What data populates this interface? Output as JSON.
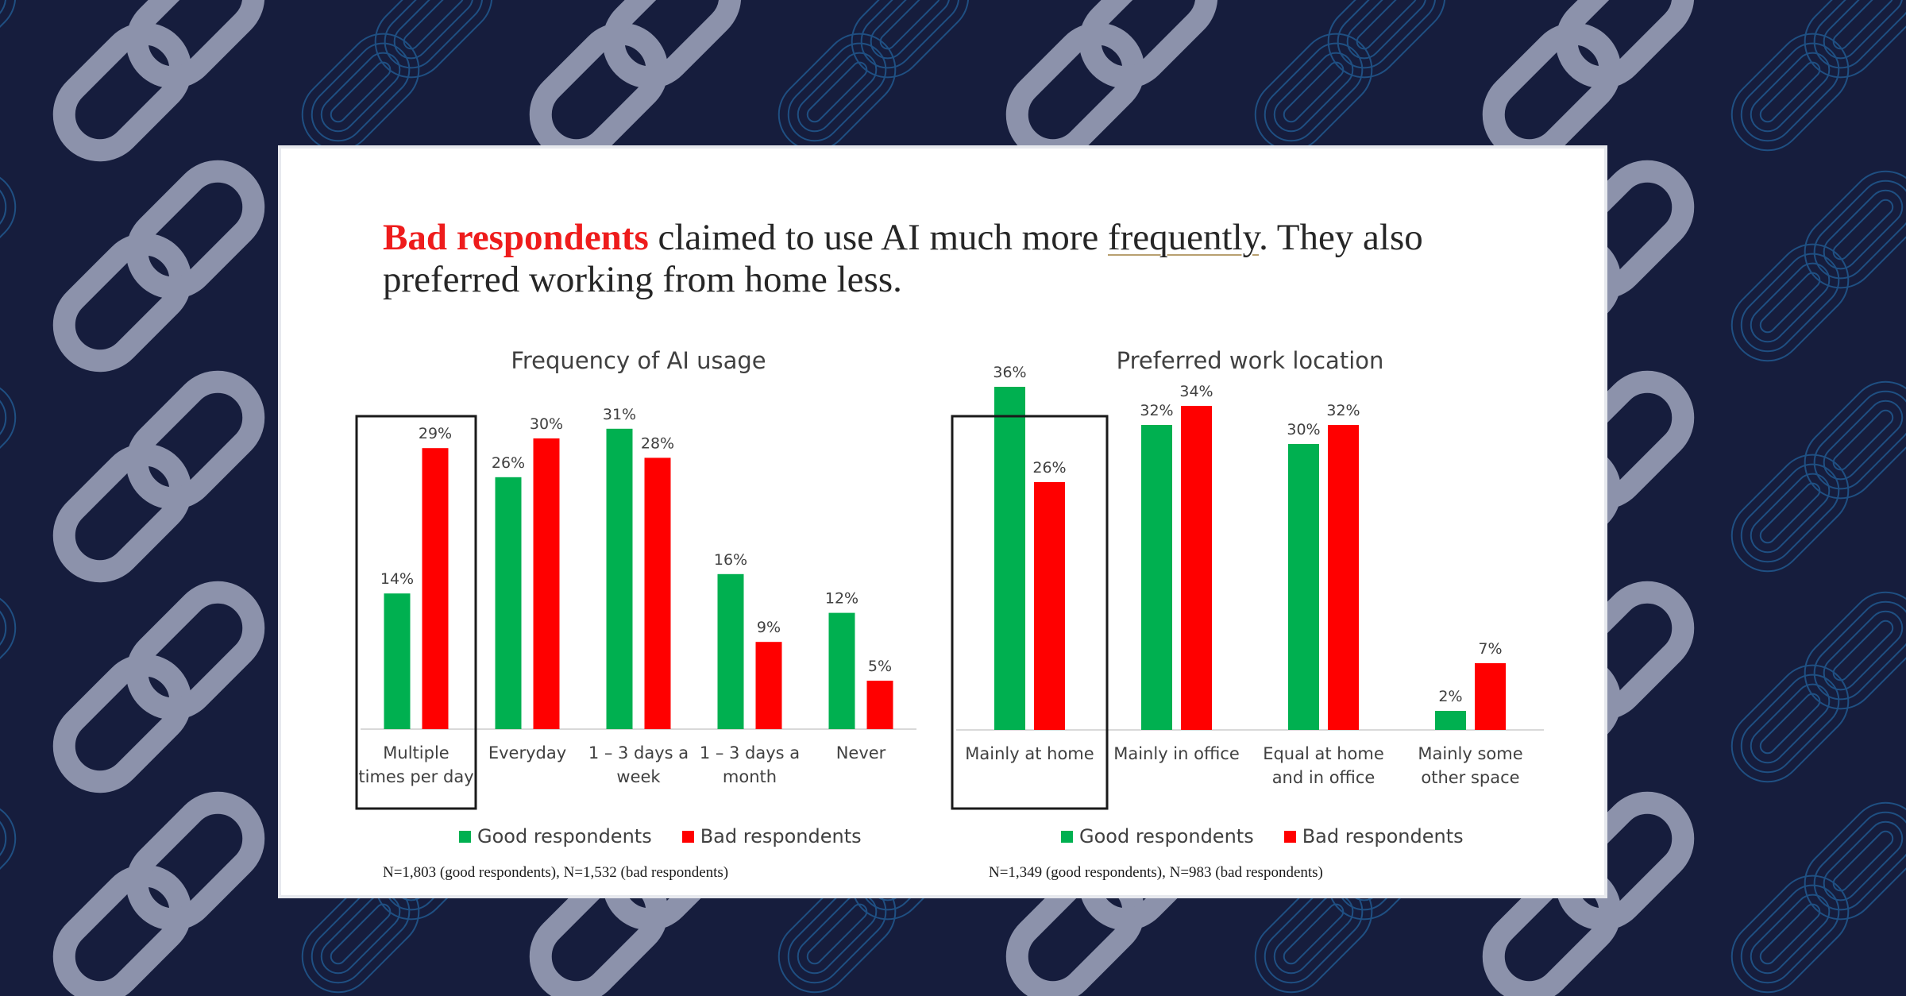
{
  "headline": {
    "part1": "Bad respondents",
    "part2": " claimed to use AI much more ",
    "part3": "frequently",
    "part4": ". They also preferred working from home less."
  },
  "colors": {
    "good": "#00b050",
    "bad": "#ff0000",
    "headline_accent": "#ee1c1c",
    "background": "#161d3d"
  },
  "chart_data": [
    {
      "type": "bar",
      "title": "Frequency of AI usage",
      "categories": [
        [
          "Multiple",
          "times per day"
        ],
        [
          "Everyday"
        ],
        [
          "1 – 3 days a",
          "week"
        ],
        [
          "1 – 3 days a",
          "month"
        ],
        [
          "Never"
        ]
      ],
      "series": [
        {
          "name": "Good respondents",
          "values": [
            14,
            26,
            31,
            16,
            12
          ],
          "labels": [
            "14%",
            "26%",
            "31%",
            "16%",
            "12%"
          ]
        },
        {
          "name": "Bad respondents",
          "values": [
            29,
            30,
            28,
            9,
            5
          ],
          "labels": [
            "29%",
            "30%",
            "28%",
            "9%",
            "5%"
          ]
        }
      ],
      "highlighted_category": 0,
      "footnote": "N=1,803 (good respondents), N=1,532 (bad respondents)",
      "legend_placement": "bottom",
      "grid": false
    },
    {
      "type": "bar",
      "title": "Preferred work location",
      "categories": [
        [
          "Mainly at home"
        ],
        [
          "Mainly in office"
        ],
        [
          "Equal at home",
          "and in office"
        ],
        [
          "Mainly some",
          "other space"
        ]
      ],
      "series": [
        {
          "name": "Good respondents",
          "values": [
            36,
            32,
            30,
            2
          ],
          "labels": [
            "36%",
            "32%",
            "30%",
            "2%"
          ]
        },
        {
          "name": "Bad respondents",
          "values": [
            26,
            34,
            32,
            7
          ],
          "labels": [
            "26%",
            "34%",
            "32%",
            "7%"
          ]
        }
      ],
      "highlighted_category": 0,
      "footnote": "N=1,349 (good respondents), N=983 (bad respondents)",
      "legend_placement": "bottom",
      "grid": false
    }
  ]
}
